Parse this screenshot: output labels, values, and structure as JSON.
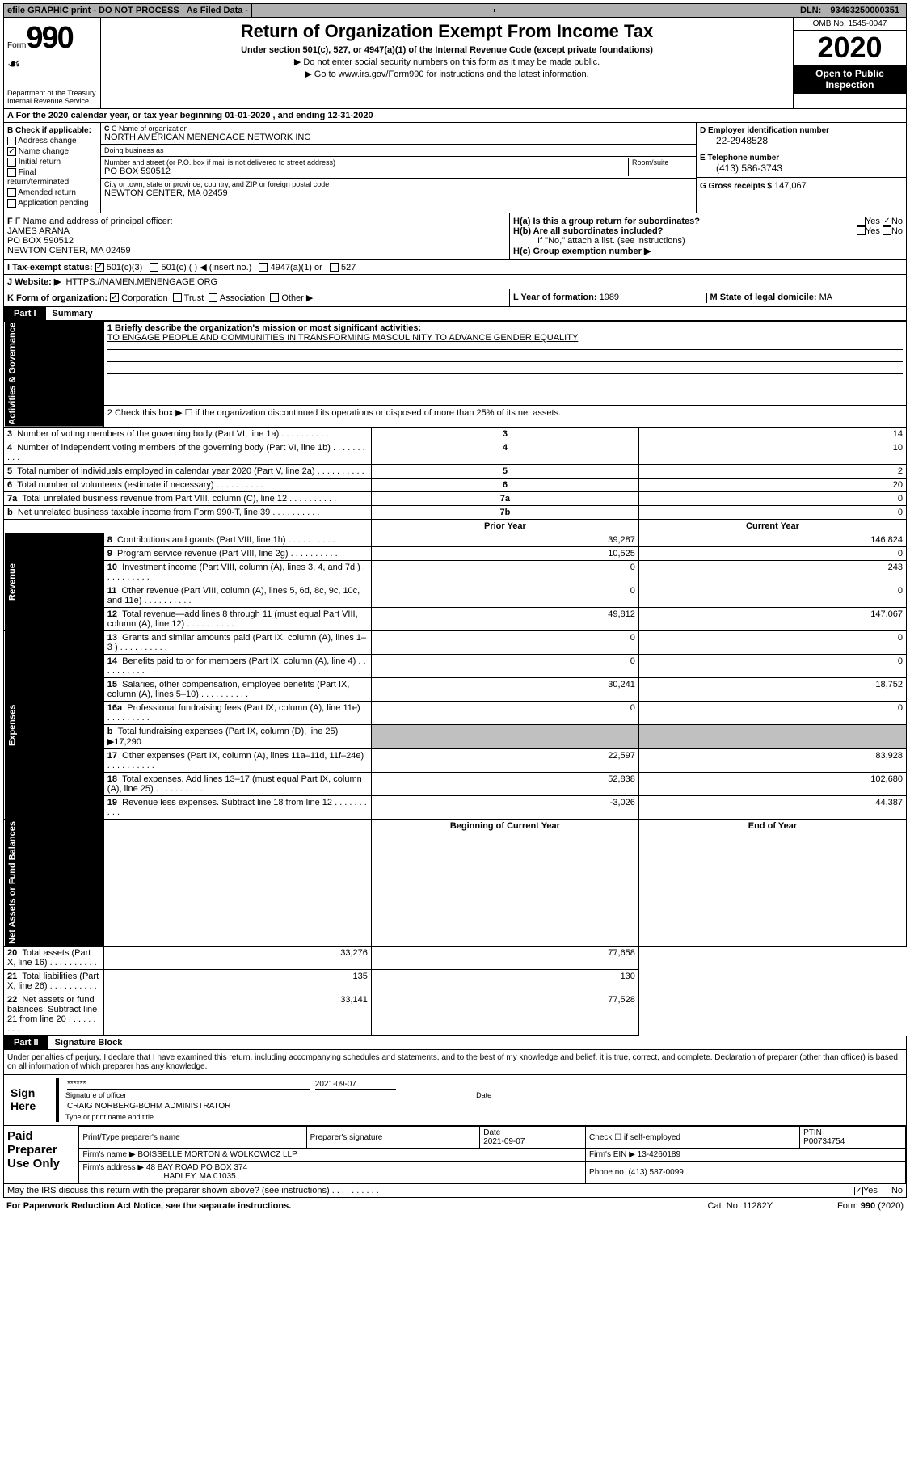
{
  "topbar": {
    "efile": "efile GRAPHIC print - DO NOT PROCESS",
    "filed": "As Filed Data -",
    "dln_label": "DLN:",
    "dln": "93493250000351"
  },
  "header": {
    "form_label": "Form",
    "form_num": "990",
    "dept": "Department of the Treasury\nInternal Revenue Service",
    "title": "Return of Organization Exempt From Income Tax",
    "subtitle": "Under section 501(c), 527, or 4947(a)(1) of the Internal Revenue Code (except private foundations)",
    "note1": "▶ Do not enter social security numbers on this form as it may be made public.",
    "note2": "▶ Go to www.irs.gov/Form990 for instructions and the latest information.",
    "omb": "OMB No. 1545-0047",
    "year": "2020",
    "open": "Open to Public Inspection"
  },
  "rowA": "A  For the 2020 calendar year, or tax year beginning 01-01-2020   , and ending 12-31-2020",
  "sectionB": {
    "label": "B Check if applicable:",
    "opts": [
      "Address change",
      "Name change",
      "Initial return",
      "Final return/terminated",
      "Amended return",
      "Application pending"
    ],
    "checked": [
      false,
      true,
      false,
      false,
      false,
      false
    ]
  },
  "sectionC": {
    "name_label": "C Name of organization",
    "name": "NORTH AMERICAN MENENGAGE NETWORK INC",
    "dba_label": "Doing business as",
    "dba": "",
    "street_label": "Number and street (or P.O. box if mail is not delivered to street address)",
    "room_label": "Room/suite",
    "street": "PO BOX 590512",
    "city_label": "City or town, state or province, country, and ZIP or foreign postal code",
    "city": "NEWTON CENTER, MA  02459"
  },
  "sectionD": {
    "label": "D Employer identification number",
    "val": "22-2948528"
  },
  "sectionE": {
    "label": "E Telephone number",
    "val": "(413) 586-3743"
  },
  "sectionG": {
    "label": "G Gross receipts $",
    "val": "147,067"
  },
  "sectionF": {
    "label": "F  Name and address of principal officer:",
    "name": "JAMES ARANA",
    "street": "PO BOX 590512",
    "city": "NEWTON CENTER, MA  02459"
  },
  "sectionH": {
    "a": "H(a)  Is this a group return for subordinates?",
    "b": "H(b)  Are all subordinates included?",
    "b_note": "If \"No,\" attach a list. (see instructions)",
    "c": "H(c)  Group exemption number ▶",
    "a_yes": false,
    "a_no": true,
    "b_yes": false,
    "b_no": false
  },
  "sectionI": {
    "label": "I  Tax-exempt status:",
    "opts": [
      "501(c)(3)",
      "501(c) (   ) ◀ (insert no.)",
      "4947(a)(1) or",
      "527"
    ],
    "checked": [
      true,
      false,
      false,
      false
    ]
  },
  "sectionJ": {
    "label": "J  Website: ▶",
    "val": "HTTPS://NAMEN.MENENGAGE.ORG"
  },
  "sectionK": {
    "label": "K Form of organization:",
    "opts": [
      "Corporation",
      "Trust",
      "Association",
      "Other ▶"
    ],
    "checked": [
      true,
      false,
      false,
      false
    ]
  },
  "sectionL": {
    "label": "L Year of formation:",
    "val": "1989"
  },
  "sectionM": {
    "label": "M State of legal domicile:",
    "val": "MA"
  },
  "part1": {
    "tab": "Part I",
    "title": "Summary"
  },
  "summary": {
    "line1": "1 Briefly describe the organization's mission or most significant activities:",
    "mission": "TO ENGAGE PEOPLE AND COMMUNITIES IN TRANSFORMING MASCULINITY TO ADVANCE GENDER EQUALITY",
    "line2": "2  Check this box ▶ ☐ if the organization discontinued its operations or disposed of more than 25% of its net assets.",
    "rows_single": [
      {
        "n": "3",
        "desc": "Number of voting members of the governing body (Part VI, line 1a)",
        "key": "3",
        "val": "14"
      },
      {
        "n": "4",
        "desc": "Number of independent voting members of the governing body (Part VI, line 1b)",
        "key": "4",
        "val": "10"
      },
      {
        "n": "5",
        "desc": "Total number of individuals employed in calendar year 2020 (Part V, line 2a)",
        "key": "5",
        "val": "2"
      },
      {
        "n": "6",
        "desc": "Total number of volunteers (estimate if necessary)",
        "key": "6",
        "val": "20"
      },
      {
        "n": "7a",
        "desc": "Total unrelated business revenue from Part VIII, column (C), line 12",
        "key": "7a",
        "val": "0"
      },
      {
        "n": "b",
        "desc": "Net unrelated business taxable income from Form 990-T, line 39",
        "key": "7b",
        "val": "0"
      }
    ],
    "hdr_prior": "Prior Year",
    "hdr_curr": "Current Year",
    "revenue": [
      {
        "n": "8",
        "desc": "Contributions and grants (Part VIII, line 1h)",
        "prior": "39,287",
        "curr": "146,824"
      },
      {
        "n": "9",
        "desc": "Program service revenue (Part VIII, line 2g)",
        "prior": "10,525",
        "curr": "0"
      },
      {
        "n": "10",
        "desc": "Investment income (Part VIII, column (A), lines 3, 4, and 7d )",
        "prior": "0",
        "curr": "243"
      },
      {
        "n": "11",
        "desc": "Other revenue (Part VIII, column (A), lines 5, 6d, 8c, 9c, 10c, and 11e)",
        "prior": "0",
        "curr": "0"
      },
      {
        "n": "12",
        "desc": "Total revenue—add lines 8 through 11 (must equal Part VIII, column (A), line 12)",
        "prior": "49,812",
        "curr": "147,067"
      }
    ],
    "expenses": [
      {
        "n": "13",
        "desc": "Grants and similar amounts paid (Part IX, column (A), lines 1–3 )",
        "prior": "0",
        "curr": "0"
      },
      {
        "n": "14",
        "desc": "Benefits paid to or for members (Part IX, column (A), line 4)",
        "prior": "0",
        "curr": "0"
      },
      {
        "n": "15",
        "desc": "Salaries, other compensation, employee benefits (Part IX, column (A), lines 5–10)",
        "prior": "30,241",
        "curr": "18,752"
      },
      {
        "n": "16a",
        "desc": "Professional fundraising fees (Part IX, column (A), line 11e)",
        "prior": "0",
        "curr": "0"
      },
      {
        "n": "b",
        "desc": "Total fundraising expenses (Part IX, column (D), line 25) ▶17,290",
        "prior": "",
        "curr": "",
        "gray": true
      },
      {
        "n": "17",
        "desc": "Other expenses (Part IX, column (A), lines 11a–11d, 11f–24e)",
        "prior": "22,597",
        "curr": "83,928"
      },
      {
        "n": "18",
        "desc": "Total expenses. Add lines 13–17 (must equal Part IX, column (A), line 25)",
        "prior": "52,838",
        "curr": "102,680"
      },
      {
        "n": "19",
        "desc": "Revenue less expenses. Subtract line 18 from line 12",
        "prior": "-3,026",
        "curr": "44,387"
      }
    ],
    "hdr_boy": "Beginning of Current Year",
    "hdr_eoy": "End of Year",
    "net": [
      {
        "n": "20",
        "desc": "Total assets (Part X, line 16)",
        "prior": "33,276",
        "curr": "77,658"
      },
      {
        "n": "21",
        "desc": "Total liabilities (Part X, line 26)",
        "prior": "135",
        "curr": "130"
      },
      {
        "n": "22",
        "desc": "Net assets or fund balances. Subtract line 21 from line 20",
        "prior": "33,141",
        "curr": "77,528"
      }
    ],
    "side_act": "Activities & Governance",
    "side_rev": "Revenue",
    "side_exp": "Expenses",
    "side_net": "Net Assets or Fund Balances"
  },
  "part2": {
    "tab": "Part II",
    "title": "Signature Block"
  },
  "perjury": "Under penalties of perjury, I declare that I have examined this return, including accompanying schedules and statements, and to the best of my knowledge and belief, it is true, correct, and complete. Declaration of preparer (other than officer) is based on all information of which preparer has any knowledge.",
  "sign": {
    "label": "Sign Here",
    "stars": "******",
    "sig_label": "Signature of officer",
    "date": "2021-09-07",
    "date_label": "Date",
    "name": "CRAIG NORBERG-BOHM ADMINISTRATOR",
    "name_label": "Type or print name and title"
  },
  "paid": {
    "label": "Paid Preparer Use Only",
    "prep_name_label": "Print/Type preparer's name",
    "prep_sig_label": "Preparer's signature",
    "date_label": "Date",
    "date": "2021-09-07",
    "check_label": "Check ☐ if self-employed",
    "ptin_label": "PTIN",
    "ptin": "P00734754",
    "firm_name_label": "Firm's name   ▶",
    "firm_name": "BOISSELLE MORTON & WOLKOWICZ LLP",
    "firm_ein_label": "Firm's EIN ▶",
    "firm_ein": "13-4260189",
    "firm_addr_label": "Firm's address ▶",
    "firm_addr": "48 BAY ROAD PO BOX 374",
    "firm_city": "HADLEY, MA  01035",
    "phone_label": "Phone no.",
    "phone": "(413) 587-0099"
  },
  "discuss": "May the IRS discuss this return with the preparer shown above? (see instructions)",
  "discuss_yes": true,
  "discuss_no": false,
  "footer": {
    "left": "For Paperwork Reduction Act Notice, see the separate instructions.",
    "mid": "Cat. No. 11282Y",
    "right": "Form 990 (2020)"
  }
}
